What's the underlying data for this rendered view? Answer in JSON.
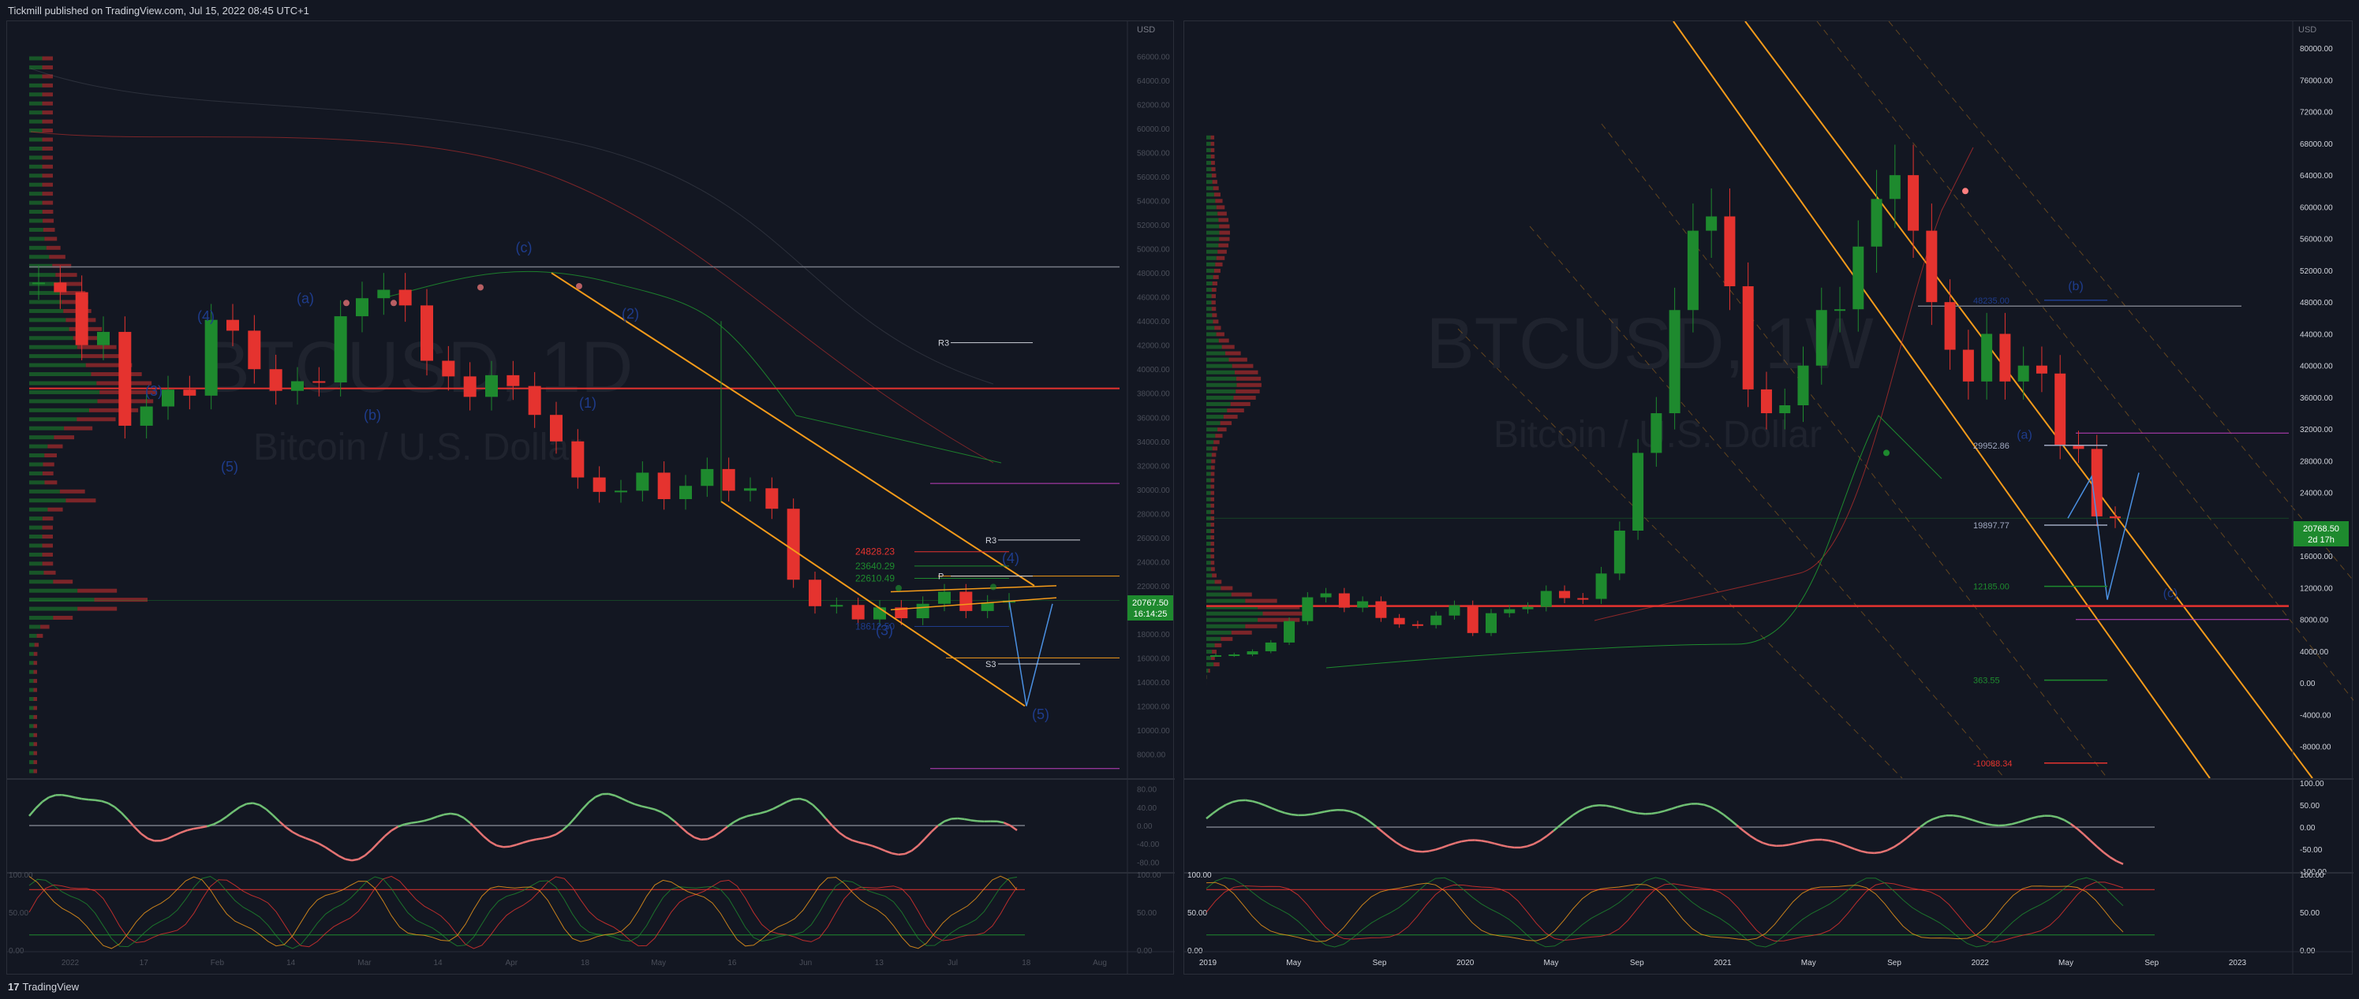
{
  "header": {
    "publisher_line": "Tickmill published on TradingView.com, Jul 15, 2022 08:45 UTC+1"
  },
  "footer": {
    "logo_mark": "17",
    "logo_text": "TradingView"
  },
  "colors": {
    "background": "#131722",
    "up": "#089981",
    "up_candle": "#1e8a2e",
    "down": "#e5332f",
    "channel": "#f59b1a",
    "wave_label": "#1e3c8c",
    "projection": "#4a90e2",
    "price_tag": "#1e8a2e",
    "rsi_up": "#6fbf73",
    "rsi_down": "#e57373"
  },
  "chart_data": [
    {
      "type": "candlestick",
      "symbol": "BTCUSD",
      "interval": "1D",
      "watermark_symbol": "BTCUSD, 1D",
      "watermark_name": "Bitcoin / U.S. Dollar",
      "currency": "USD",
      "ylim": [
        6000,
        68000
      ],
      "y_ticks": [
        "66000.00",
        "64000.00",
        "62000.00",
        "60000.00",
        "58000.00",
        "56000.00",
        "54000.00",
        "52000.00",
        "50000.00",
        "48000.00",
        "46000.00",
        "44000.00",
        "42000.00",
        "40000.00",
        "38000.00",
        "36000.00",
        "34000.00",
        "32000.00",
        "30000.00",
        "28000.00",
        "26000.00",
        "24000.00",
        "22000.00",
        "20000.00",
        "18000.00",
        "16000.00",
        "14000.00",
        "12000.00",
        "10000.00",
        "8000.00"
      ],
      "x_ticks": [
        "2022",
        "17",
        "Feb",
        "14",
        "Mar",
        "14",
        "Apr",
        "18",
        "May",
        "16",
        "Jun",
        "13",
        "Jul",
        "18",
        "Aug"
      ],
      "last_price": "20767.50",
      "countdown": "16:14:25",
      "wave_labels": [
        "(c)",
        "(a)",
        "(4)",
        "(3)",
        "(5)",
        "(b)",
        "(2)",
        "(1)",
        "(3)",
        "(4)",
        "(5)"
      ],
      "fib_levels": [
        "24828.23",
        "23640.29",
        "22610.49",
        "18612.50"
      ],
      "pivot_labels": [
        "R3",
        "P",
        "S3",
        "R3"
      ],
      "approx_daily_closes": [
        47200,
        46400,
        42000,
        43100,
        35300,
        36900,
        38300,
        37800,
        44100,
        43200,
        40000,
        38200,
        39000,
        38900,
        44400,
        45900,
        46600,
        45300,
        40700,
        39400,
        37700,
        39500,
        38600,
        36200,
        34000,
        31000,
        29800,
        29900,
        31400,
        29200,
        30300,
        31700,
        29900,
        30100,
        28400,
        22500,
        20300,
        20400,
        19200,
        20200,
        19300,
        20500,
        21500,
        19900,
        20600,
        20767
      ]
    },
    {
      "type": "candlestick",
      "symbol": "BTCUSD",
      "interval": "1W",
      "watermark_symbol": "BTCUSD, 1W",
      "watermark_name": "Bitcoin / U.S. Dollar",
      "currency": "USD",
      "ylim": [
        -12000,
        82000
      ],
      "y_ticks": [
        "80000.00",
        "76000.00",
        "72000.00",
        "68000.00",
        "64000.00",
        "60000.00",
        "56000.00",
        "52000.00",
        "48000.00",
        "44000.00",
        "40000.00",
        "36000.00",
        "32000.00",
        "28000.00",
        "24000.00",
        "20000.00",
        "16000.00",
        "12000.00",
        "8000.00",
        "4000.00",
        "0.00",
        "-4000.00",
        "-8000.00"
      ],
      "x_ticks": [
        "2019",
        "May",
        "Sep",
        "2020",
        "May",
        "Sep",
        "2021",
        "May",
        "Sep",
        "2022",
        "May",
        "Sep",
        "2023"
      ],
      "last_price": "20768.50",
      "countdown": "2d 17h",
      "wave_labels": [
        "(b)",
        "(a)",
        "(c)"
      ],
      "fib_levels": [
        "48235.00",
        "29952.86",
        "19897.77",
        "12185.00",
        "363.55",
        "-10088.34"
      ],
      "approx_weekly_closes": [
        3500,
        3600,
        4000,
        5100,
        7800,
        10800,
        11300,
        9500,
        10300,
        8200,
        7400,
        7300,
        8500,
        9800,
        6300,
        8800,
        9300,
        9600,
        11600,
        10700,
        10600,
        13800,
        19200,
        29000,
        34000,
        47000,
        57000,
        58800,
        50000,
        37000,
        34000,
        35000,
        40000,
        47000,
        47100,
        55000,
        61000,
        64000,
        57000,
        48000,
        42000,
        38000,
        44000,
        38000,
        40000,
        39000,
        30000,
        29500,
        21000,
        20768
      ]
    },
    {
      "type": "line",
      "name": "RSI-1D",
      "ylim": [
        -100,
        100
      ],
      "y_ticks": [
        "80.00",
        "40.00",
        "0.00",
        "-40.00",
        "-80.00"
      ]
    },
    {
      "type": "line",
      "name": "Stoch-1D",
      "ylim": [
        0,
        100
      ],
      "y_ticks": [
        "100.00",
        "50.00",
        "0.00"
      ]
    },
    {
      "type": "line",
      "name": "RSI-1W",
      "ylim": [
        -100,
        100
      ],
      "y_ticks": [
        "100.00",
        "50.00",
        "0.00",
        "-50.00",
        "-100.00"
      ]
    },
    {
      "type": "line",
      "name": "Stoch-1W",
      "ylim": [
        0,
        100
      ],
      "y_ticks": [
        "100.00",
        "50.00",
        "0.00"
      ]
    }
  ]
}
